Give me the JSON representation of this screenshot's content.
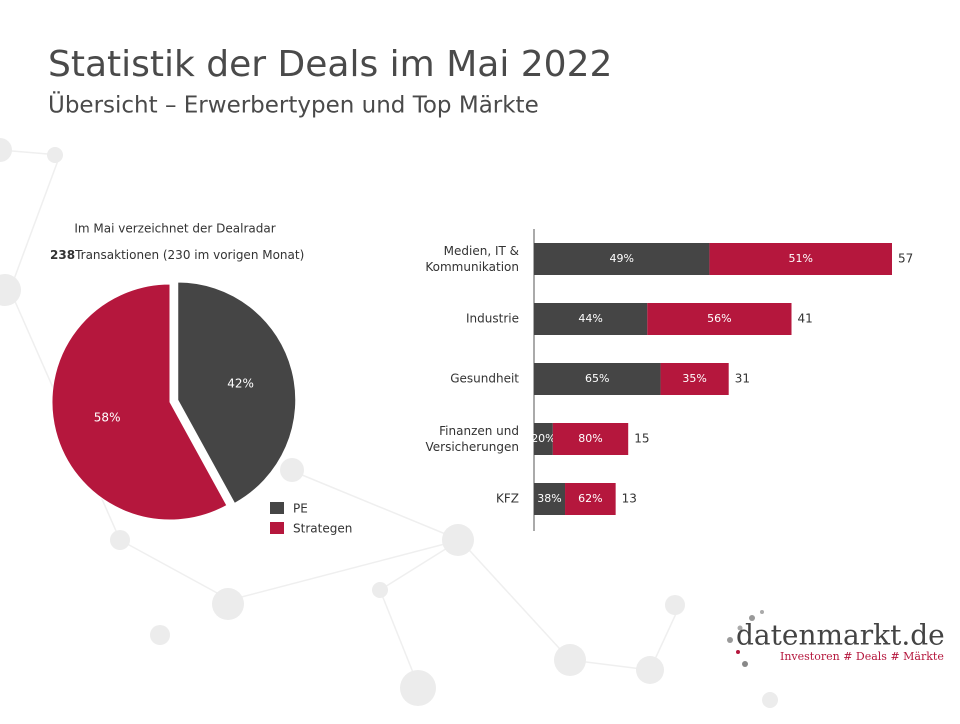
{
  "slide": {
    "title": "Statistik der Deals im Mai 2022",
    "subtitle": "Übersicht – Erwerbertypen und Top Märkte"
  },
  "chart_data": [
    {
      "type": "pie",
      "note": "Im Mai verzeichnet der Dealradar",
      "count": 238,
      "count_text": "Transaktionen  (230 im vorigen Monat)",
      "categories": [
        "PE",
        "Strategen"
      ],
      "values": [
        42,
        58
      ],
      "value_labels": [
        "42%",
        "58%"
      ],
      "colors": [
        "#454545",
        "#b5173d"
      ],
      "legend": "bottom-right"
    },
    {
      "type": "barh",
      "categories": [
        "Medien, IT &\nKommunikation",
        "Industrie",
        "Gesundheit",
        "Finanzen und\nVersicherungen",
        "KFZ"
      ],
      "totals": [
        57,
        41,
        31,
        15,
        13
      ],
      "series": [
        {
          "name": "PE",
          "color": "#454545",
          "values": [
            49,
            44,
            65,
            20,
            38
          ],
          "value_labels": [
            "49%",
            "44%",
            "65%",
            "20%",
            "38%"
          ]
        },
        {
          "name": "Strategen",
          "color": "#b5173d",
          "values": [
            51,
            56,
            35,
            80,
            62
          ],
          "value_labels": [
            "51%",
            "56%",
            "35%",
            "80%",
            "62%"
          ]
        }
      ]
    }
  ],
  "logo": {
    "name": "datenmarkt.de",
    "tagline": "Investoren # Deals # Märkte"
  }
}
